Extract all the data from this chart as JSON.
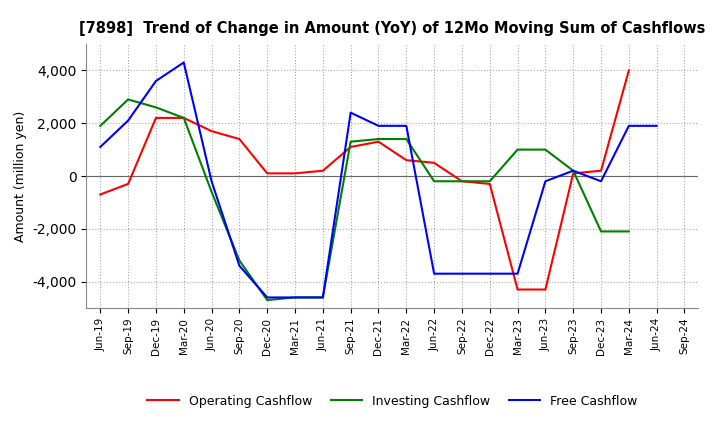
{
  "title": "[7898]  Trend of Change in Amount (YoY) of 12Mo Moving Sum of Cashflows",
  "ylabel": "Amount (million yen)",
  "ylim": [
    -5000,
    5000
  ],
  "yticks": [
    -4000,
    -2000,
    0,
    2000,
    4000
  ],
  "x_labels": [
    "Jun-19",
    "Sep-19",
    "Dec-19",
    "Mar-20",
    "Jun-20",
    "Sep-20",
    "Dec-20",
    "Mar-21",
    "Jun-21",
    "Sep-21",
    "Dec-21",
    "Mar-22",
    "Jun-22",
    "Sep-22",
    "Dec-22",
    "Mar-23",
    "Jun-23",
    "Sep-23",
    "Dec-23",
    "Mar-24",
    "Jun-24",
    "Sep-24"
  ],
  "operating": [
    -700,
    -300,
    2200,
    2200,
    1700,
    1400,
    100,
    100,
    200,
    1100,
    1300,
    600,
    500,
    -200,
    -300,
    -4300,
    -4300,
    100,
    200,
    4000,
    null,
    null
  ],
  "investing": [
    1900,
    2900,
    2600,
    2200,
    -600,
    -3200,
    -4700,
    -4600,
    -4600,
    1300,
    1400,
    1400,
    -200,
    -200,
    -200,
    1000,
    1000,
    200,
    -2100,
    -2100,
    null,
    null
  ],
  "free": [
    1100,
    2100,
    3600,
    4300,
    -200,
    -3400,
    -4600,
    -4600,
    -4600,
    2400,
    1900,
    1900,
    -3700,
    -3700,
    -3700,
    -3700,
    -200,
    200,
    -200,
    1900,
    1900,
    null
  ],
  "operating_color": "#ff0000",
  "investing_color": "#008000",
  "free_color": "#0000ff",
  "background_color": "#ffffff",
  "grid_color": "#aaaaaa"
}
